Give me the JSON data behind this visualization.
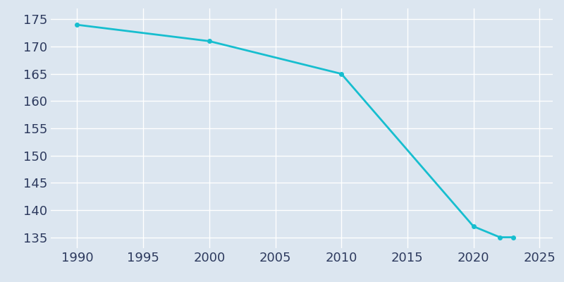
{
  "years": [
    1990,
    2000,
    2010,
    2020,
    2022,
    2023
  ],
  "population": [
    174,
    171,
    165,
    137,
    135,
    135
  ],
  "line_color": "#17becf",
  "marker_color": "#17becf",
  "background_color": "#dce6f0",
  "plot_background_color": "#dce6f0",
  "grid_color": "#ffffff",
  "tick_color": "#2d3a5e",
  "xlim": [
    1988,
    2026
  ],
  "ylim": [
    133,
    177
  ],
  "yticks": [
    135,
    140,
    145,
    150,
    155,
    160,
    165,
    170,
    175
  ],
  "xticks": [
    1990,
    1995,
    2000,
    2005,
    2010,
    2015,
    2020,
    2025
  ],
  "line_width": 2.0,
  "marker_size": 4,
  "tick_fontsize": 13
}
